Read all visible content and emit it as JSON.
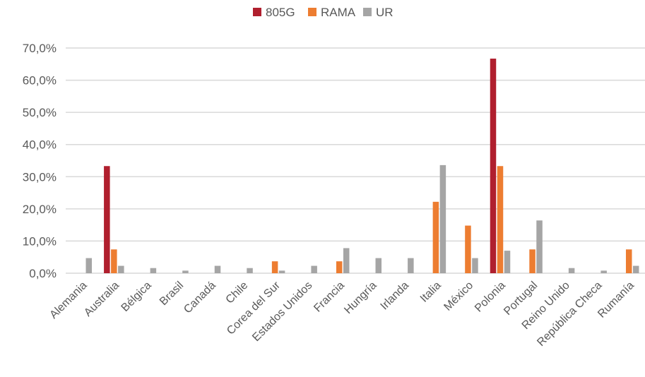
{
  "chart_data": {
    "type": "bar",
    "title": "",
    "xlabel": "",
    "ylabel": "",
    "ylim": [
      0,
      70
    ],
    "y_ticks": [
      "0,0%",
      "10,0%",
      "20,0%",
      "30,0%",
      "40,0%",
      "50,0%",
      "60,0%",
      "70,0%"
    ],
    "grid": true,
    "legend_position": "top-center",
    "categories": [
      "Alemania",
      "Australia",
      "Bélgica",
      "Brasil",
      "Canadá",
      "Chile",
      "Corea del Sur",
      "Estados Unidos",
      "Francia",
      "Hungría",
      "Irlanda",
      "Italia",
      "México",
      "Polonia",
      "Portugal",
      "Reino Unido",
      "República Checa",
      "Rumanía"
    ],
    "series": [
      {
        "name": "805G",
        "color": "#b01f2e",
        "values": [
          0,
          33.3,
          0,
          0,
          0,
          0,
          0,
          0,
          0,
          0,
          0,
          0,
          0,
          66.7,
          0,
          0,
          0,
          0
        ]
      },
      {
        "name": "RAMA",
        "color": "#ed7d31",
        "values": [
          0,
          7.4,
          0,
          0,
          0,
          0,
          3.7,
          0,
          3.7,
          0,
          0,
          22.2,
          14.8,
          33.3,
          7.4,
          0,
          0,
          7.4
        ]
      },
      {
        "name": "UR",
        "color": "#a5a5a5",
        "values": [
          4.7,
          2.3,
          1.6,
          0.8,
          2.3,
          1.6,
          0.8,
          2.3,
          7.8,
          4.7,
          4.7,
          33.6,
          4.7,
          7.0,
          16.4,
          1.6,
          0.8,
          2.3
        ]
      }
    ]
  }
}
